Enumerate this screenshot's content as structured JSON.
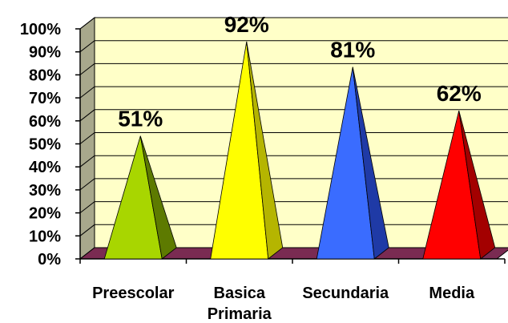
{
  "chart_data": {
    "type": "bar",
    "style": "3d-pyramid",
    "categories": [
      [
        "Preescolar"
      ],
      [
        "Basica",
        "Primaria"
      ],
      [
        "Secundaria"
      ],
      [
        "Media"
      ]
    ],
    "values": [
      51,
      92,
      81,
      62
    ],
    "data_labels": [
      "51%",
      "92%",
      "81%",
      "62%"
    ],
    "ylim": [
      0,
      100
    ],
    "y_ticks": [
      "0%",
      "10%",
      "20%",
      "30%",
      "40%",
      "50%",
      "60%",
      "70%",
      "80%",
      "90%",
      "100%"
    ],
    "grid": true,
    "legend": false,
    "title": "",
    "xlabel": "",
    "ylabel": "",
    "colors": {
      "bars": [
        "#a8d600",
        "#ffff00",
        "#3a6cff",
        "#ff0000"
      ],
      "bar_shades": [
        "#5d7a00",
        "#b5b500",
        "#1f3aa6",
        "#a30000"
      ],
      "wall": "#ffffc8",
      "side_wall": "#a8a88c",
      "floor": "#7a2b52"
    }
  }
}
